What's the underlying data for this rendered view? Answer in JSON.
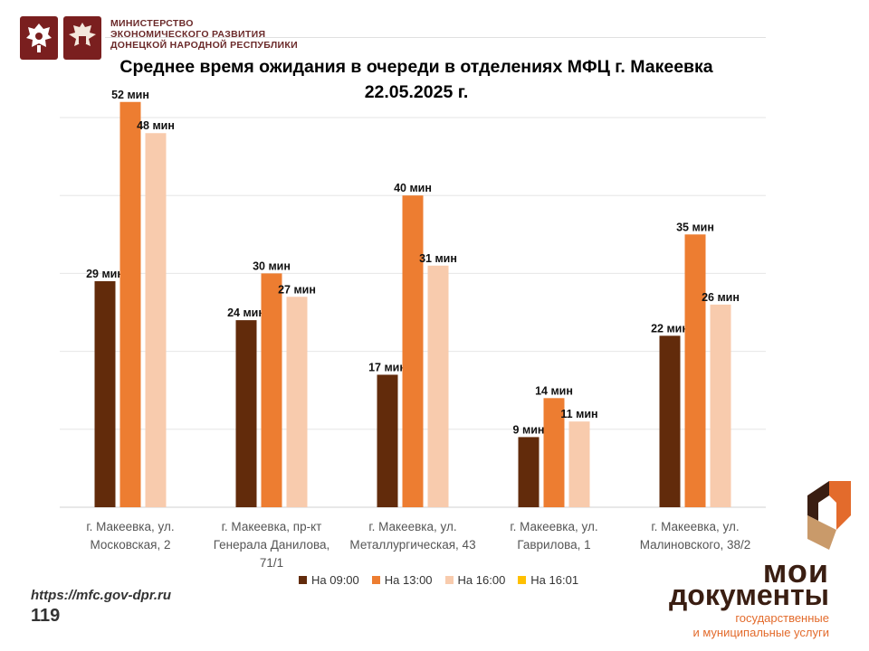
{
  "header": {
    "ministry_lines": [
      "МИНИСТЕРСТВО",
      "ЭКОНОМИЧЕСКОГО РАЗВИТИЯ",
      "ДОНЕЦКОЙ НАРОДНОЙ РЕСПУБЛИКИ"
    ],
    "emblem_icons": [
      "double-headed-eagle-emblem-icon",
      "dpr-eagle-emblem-icon"
    ],
    "emblem_color": "#7a1f1f"
  },
  "chart_data": {
    "type": "bar",
    "title_lines": [
      "Среднее время ожидания в очереди в отделениях МФЦ г. Макеевка",
      "22.05.2025 г."
    ],
    "categories": [
      [
        "г. Макеевка, ул.",
        "Московская, 2"
      ],
      [
        "г. Макеевка, пр-кт",
        "Генерала Данилова,",
        "71/1"
      ],
      [
        "г. Макеевка, ул.",
        "Металлургическая, 43"
      ],
      [
        "г. Макеевка, ул.",
        "Гаврилова, 1"
      ],
      [
        "г. Макеевка, ул.",
        "Малиновского, 38/2"
      ]
    ],
    "series": [
      {
        "name": "На 09:00",
        "color": "#622b0b",
        "values": [
          29,
          24,
          17,
          9,
          22
        ],
        "labels": [
          "29 мин",
          "24 мин",
          "17 мин",
          "9 мин",
          "22 мин"
        ]
      },
      {
        "name": "На 13:00",
        "color": "#ed7d31",
        "values": [
          52,
          30,
          40,
          14,
          35
        ],
        "labels": [
          "52 мин",
          "30 мин",
          "40 мин",
          "14 мин",
          "35 мин"
        ]
      },
      {
        "name": "На 16:00",
        "color": "#f8cbad",
        "values": [
          48,
          27,
          31,
          11,
          26
        ],
        "labels": [
          "48 мин",
          "27 мин",
          "31 мин",
          "11 мин",
          "26 мин"
        ]
      },
      {
        "name": "На 16:01",
        "color": "#ffc000",
        "values": [
          0,
          0,
          0,
          0,
          0
        ],
        "labels": []
      }
    ],
    "ylim": [
      0,
      50
    ],
    "grid": true,
    "legend_position": "bottom"
  },
  "footer": {
    "url": "https://mfc.gov-dpr.ru",
    "phone": "119",
    "brand_line1": "мои",
    "brand_line2": "документы",
    "brand_line3": "государственные",
    "brand_line4": "и муниципальные услуги",
    "brand_icon": "moi-dokumenty-logo-icon",
    "brand_colors": {
      "dark": "#3a1e12",
      "orange": "#e36b2c",
      "tan": "#c99a6a"
    }
  }
}
